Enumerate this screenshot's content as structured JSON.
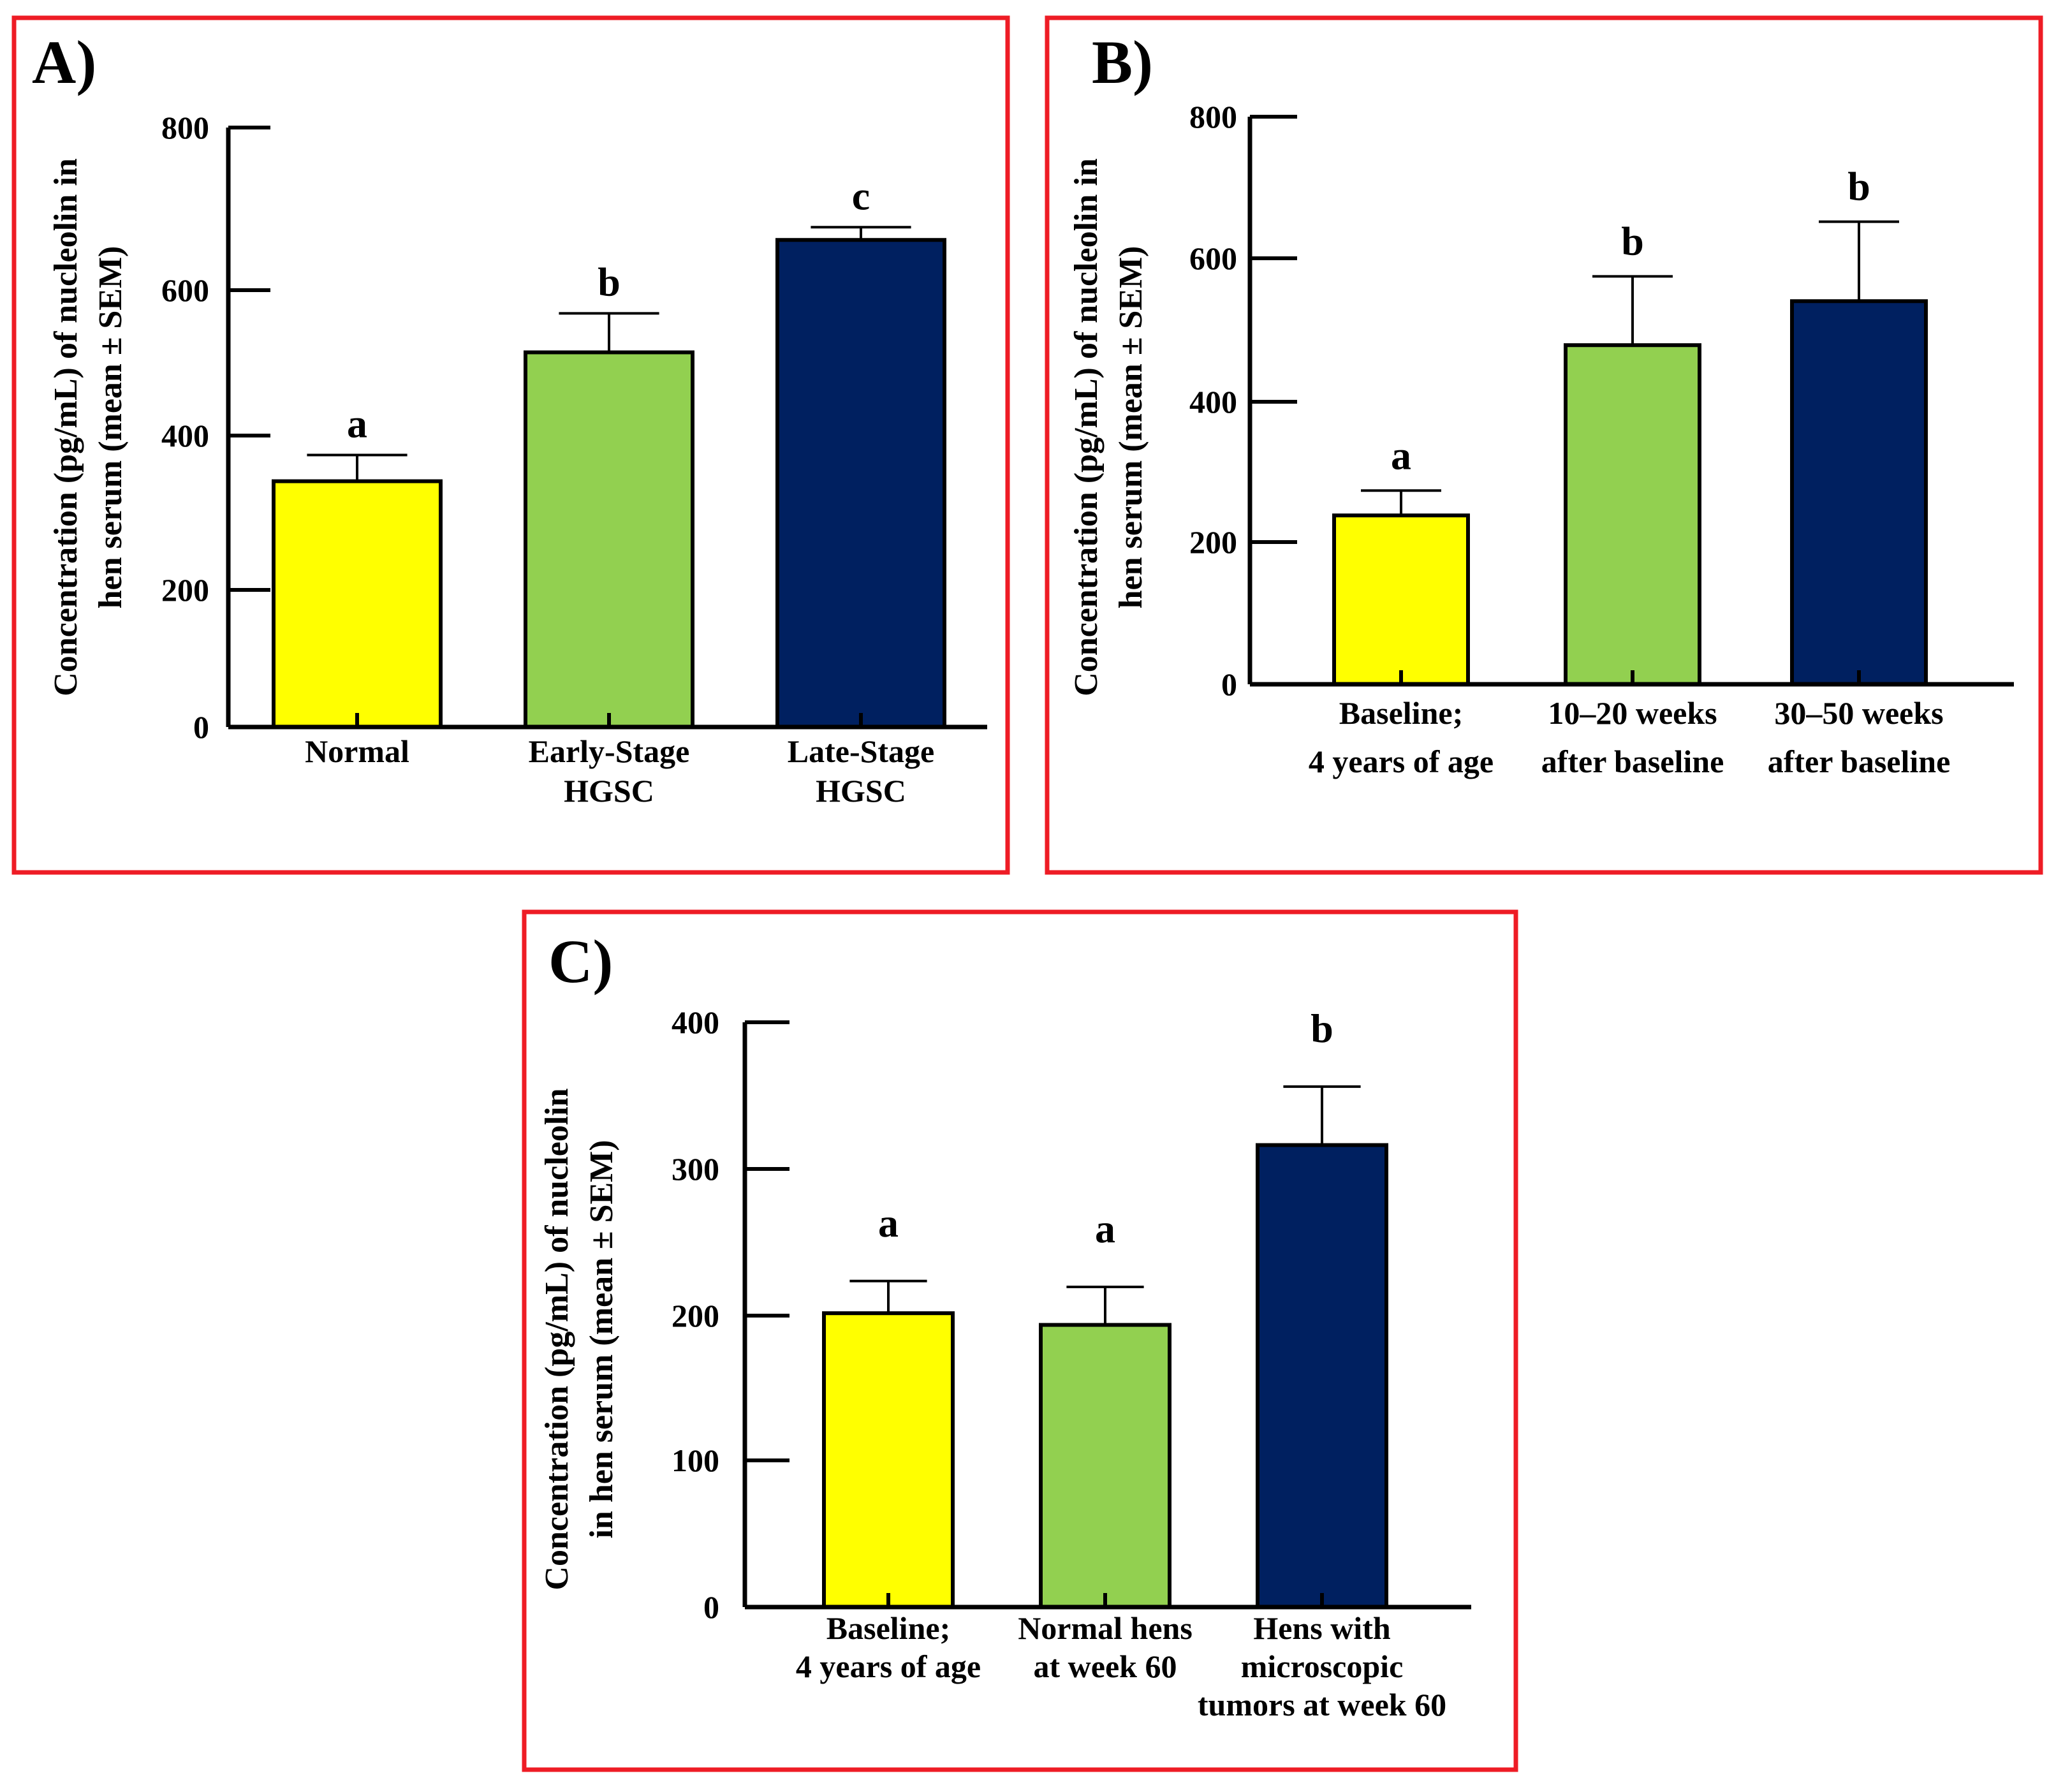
{
  "colors": {
    "frame": "#ee1c25",
    "yellow": "#ffff00",
    "green": "#92d050",
    "navy": "#002060",
    "ink": "#000000"
  },
  "chart_data": [
    {
      "panel": "A)",
      "type": "bar",
      "ylabel_lines": [
        "Concentration (pg/mL) of nucleolin in",
        "hen serum (mean ± SEM)"
      ],
      "ylim": [
        0,
        800
      ],
      "yticks": [
        0,
        200,
        400,
        600,
        800
      ],
      "categories": [
        [
          "Normal"
        ],
        [
          "Early-Stage",
          "HGSC"
        ],
        [
          "Late-Stage",
          "HGSC"
        ]
      ],
      "values": [
        328,
        500,
        650
      ],
      "errors": [
        35,
        52,
        17
      ],
      "significance": [
        "a",
        "b",
        "c"
      ],
      "bar_colors": [
        "yellow",
        "green",
        "navy"
      ]
    },
    {
      "panel": "B)",
      "type": "bar",
      "ylabel_lines": [
        "Concentration (pg/mL) of nucleolin in",
        "hen serum (mean ± SEM)"
      ],
      "ylim": [
        0,
        800
      ],
      "yticks": [
        0,
        200,
        400,
        600,
        800
      ],
      "categories": [
        [
          "Baseline;",
          "4 years of age"
        ],
        [
          "10–20 weeks",
          "after baseline"
        ],
        [
          "30–50 weeks",
          "after baseline"
        ]
      ],
      "values": [
        238,
        478,
        540
      ],
      "errors": [
        35,
        97,
        112
      ],
      "significance": [
        "a",
        "b",
        "b"
      ],
      "bar_colors": [
        "yellow",
        "green",
        "navy"
      ]
    },
    {
      "panel": "C)",
      "type": "bar",
      "ylabel_lines": [
        "Concentration (pg/mL) of nucleolin",
        "in hen serum (mean ± SEM)"
      ],
      "ylim": [
        0,
        400
      ],
      "yticks": [
        0,
        100,
        200,
        300,
        400
      ],
      "categories": [
        [
          "Baseline;",
          "4 years of age"
        ],
        [
          "Normal hens",
          "at week 60"
        ],
        [
          "Hens with",
          "microscopic",
          "tumors at week 60"
        ]
      ],
      "values": [
        201,
        193,
        316
      ],
      "errors": [
        22,
        26,
        40
      ],
      "significance": [
        "a",
        "a",
        "b"
      ],
      "bar_colors": [
        "yellow",
        "green",
        "navy"
      ]
    }
  ]
}
